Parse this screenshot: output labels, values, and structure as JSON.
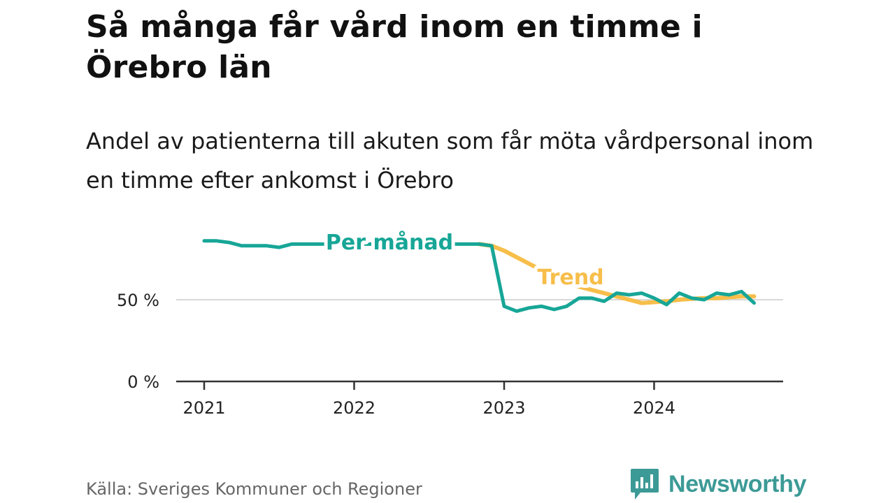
{
  "title": "Så många får vård inom en timme i Örebro län",
  "subtitle": "Andel av patienterna till akuten som får möta vårdpersonal inom en timme efter ankomst i Örebro",
  "source": "Källa: Sveriges Kommuner och Regioner",
  "brand": {
    "name": "Newsworthy",
    "icon": "newsworthy-logo-icon",
    "color": "#3c9a96"
  },
  "chart_data": {
    "type": "line",
    "title": "Så många får vård inom en timme i Örebro län",
    "subtitle": "Andel av patienterna till akuten som får möta vårdpersonal inom en timme efter ankomst i Örebro",
    "ylim": [
      0,
      100
    ],
    "yticks": [
      {
        "value": 0,
        "label": "0 %"
      },
      {
        "value": 50,
        "label": "50 %"
      }
    ],
    "xticks": [
      {
        "value": "2021-01",
        "label": "2021"
      },
      {
        "value": "2022-01",
        "label": "2022"
      },
      {
        "value": "2023-01",
        "label": "2023"
      },
      {
        "value": "2024-01",
        "label": "2024"
      }
    ],
    "grid": "horizontal",
    "series": [
      {
        "name": "Trend",
        "color": "#f7be4a",
        "x": [
          "2022-11",
          "2022-12",
          "2023-01",
          "2023-02",
          "2023-03",
          "2023-04",
          "2023-05",
          "2023-06",
          "2023-07",
          "2023-08",
          "2023-09",
          "2023-10",
          "2023-11",
          "2023-12",
          "2024-01",
          "2024-02",
          "2024-03",
          "2024-04",
          "2024-05",
          "2024-06",
          "2024-07",
          "2024-08",
          "2024-09"
        ],
        "values": [
          84,
          83,
          80,
          76,
          72,
          68,
          64,
          61,
          58,
          56,
          54,
          52,
          50,
          48,
          48.5,
          49,
          50,
          50.5,
          51,
          51,
          51.5,
          52,
          52
        ]
      },
      {
        "name": "Per månad",
        "color": "#17a697",
        "x": [
          "2021-01",
          "2021-02",
          "2021-03",
          "2021-04",
          "2021-05",
          "2021-06",
          "2021-07",
          "2021-08",
          "2021-09",
          "2021-10",
          "2021-11",
          "2021-12",
          "2022-01",
          "2022-02",
          "2022-03",
          "2022-04",
          "2022-05",
          "2022-06",
          "2022-07",
          "2022-08",
          "2022-09",
          "2022-10",
          "2022-11",
          "2022-12",
          "2023-01",
          "2023-02",
          "2023-03",
          "2023-04",
          "2023-05",
          "2023-06",
          "2023-07",
          "2023-08",
          "2023-09",
          "2023-10",
          "2023-11",
          "2023-12",
          "2024-01",
          "2024-02",
          "2024-03",
          "2024-04",
          "2024-05",
          "2024-06",
          "2024-07",
          "2024-08",
          "2024-09"
        ],
        "values": [
          86,
          86,
          85,
          83,
          83,
          83,
          82,
          84,
          84,
          84,
          84,
          84,
          84,
          84,
          84,
          84,
          84,
          84,
          84,
          84,
          84,
          84,
          84,
          83,
          46,
          43,
          45,
          46,
          44,
          46,
          51,
          51,
          49,
          54,
          53,
          54,
          51,
          47,
          54,
          51,
          50,
          54,
          53,
          55,
          48
        ]
      }
    ],
    "annotations": [
      "Per månad",
      "Trend"
    ]
  }
}
